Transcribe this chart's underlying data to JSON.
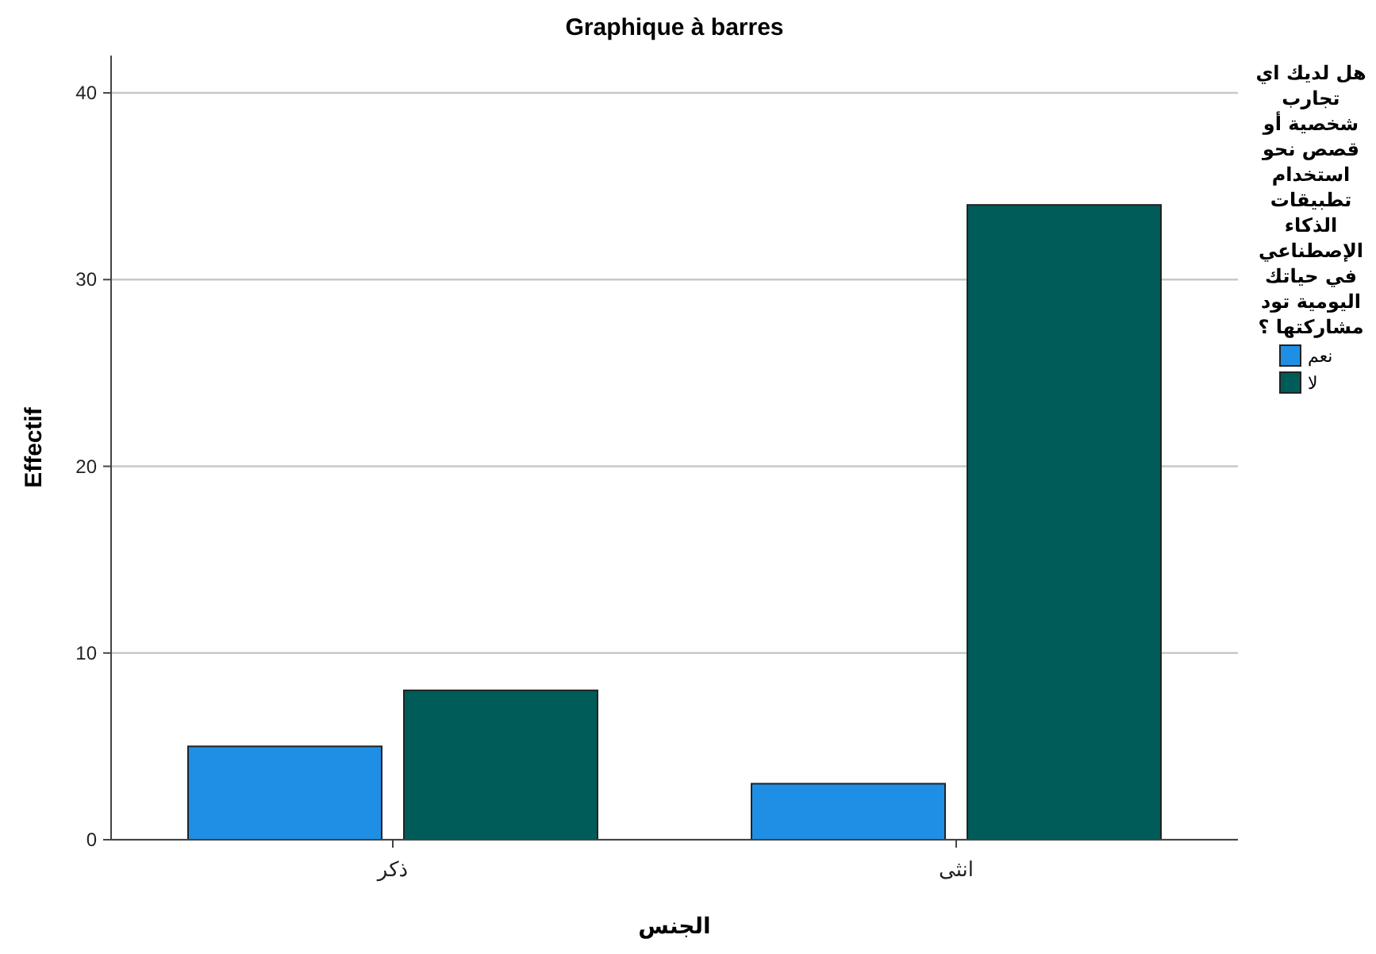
{
  "chart_data": {
    "type": "bar",
    "title": "Graphique à barres",
    "xlabel": "الجنس",
    "ylabel": "Effectif",
    "legend_title": "هل لديك اي تجارب شخصية أو قصص نحو استخدام تطبيقات الذكاء الإصطناعي في حياتك اليومية تود مشاركتها ؟",
    "categories": [
      "ذكر",
      "انثى"
    ],
    "series": [
      {
        "name": "نعم",
        "color": "#1f8fe6",
        "values": [
          5,
          3
        ]
      },
      {
        "name": "لا",
        "color": "#005c58",
        "values": [
          8,
          34
        ]
      }
    ],
    "ylim": [
      0,
      42
    ],
    "yticks": [
      0,
      10,
      20,
      30,
      40
    ],
    "grid": "y",
    "legend": "right"
  }
}
